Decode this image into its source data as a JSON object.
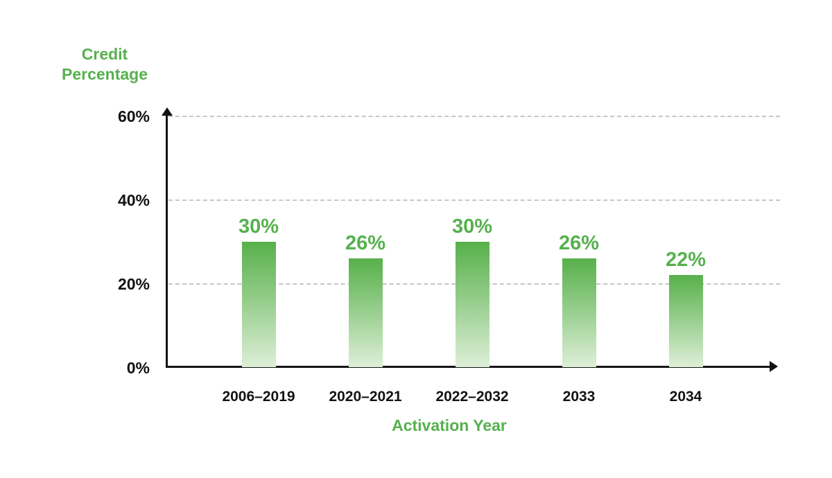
{
  "chart_data": {
    "type": "bar",
    "title": "",
    "xlabel": "Activation Year",
    "ylabel": "Credit Percentage",
    "categories": [
      "2006–2019",
      "2020–2021",
      "2022–2032",
      "2033",
      "2034"
    ],
    "values": [
      30,
      26,
      30,
      26,
      22
    ],
    "value_labels": [
      "30%",
      "26%",
      "30%",
      "26%",
      "22%"
    ],
    "yticks": [
      {
        "label": "0%",
        "value": 0
      },
      {
        "label": "20%",
        "value": 20
      },
      {
        "label": "40%",
        "value": 40
      },
      {
        "label": "60%",
        "value": 60
      }
    ],
    "ylim": [
      0,
      60
    ],
    "grid": "horizontal dashed lines at 20%, 40%, 60%",
    "legend_position": "none",
    "colors": {
      "bar_gradient_top": "#57b04a",
      "bar_gradient_bottom": "#ddefd7",
      "green_text": "#55b14d",
      "axis": "#121212",
      "gridline": "#c6c6c6",
      "tick_text": "#121212",
      "background": "#ffffff"
    }
  }
}
